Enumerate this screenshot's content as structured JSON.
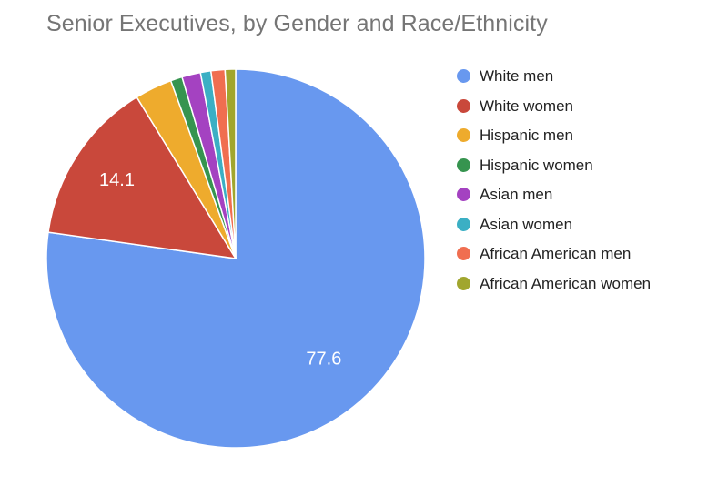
{
  "chart_data": {
    "type": "pie",
    "title": "Senior Executives, by Gender and Race/Ethnicity",
    "categories": [
      "White men",
      "White women",
      "Hispanic men",
      "Hispanic women",
      "Asian men",
      "Asian women",
      "African American men",
      "African American women"
    ],
    "values": [
      77.6,
      14.1,
      3.2,
      1.0,
      1.6,
      0.9,
      1.2,
      0.9
    ],
    "colors": [
      "#6898ef",
      "#c9483b",
      "#eeab2d",
      "#36944f",
      "#a442c1",
      "#3bafc4",
      "#f06e50",
      "#a1a62e"
    ],
    "data_labels": [
      "77.6",
      "14.1",
      "",
      "",
      "",
      "",
      "",
      ""
    ],
    "legend_position": "right",
    "start_angle_deg": 0,
    "direction": "clockwise"
  }
}
